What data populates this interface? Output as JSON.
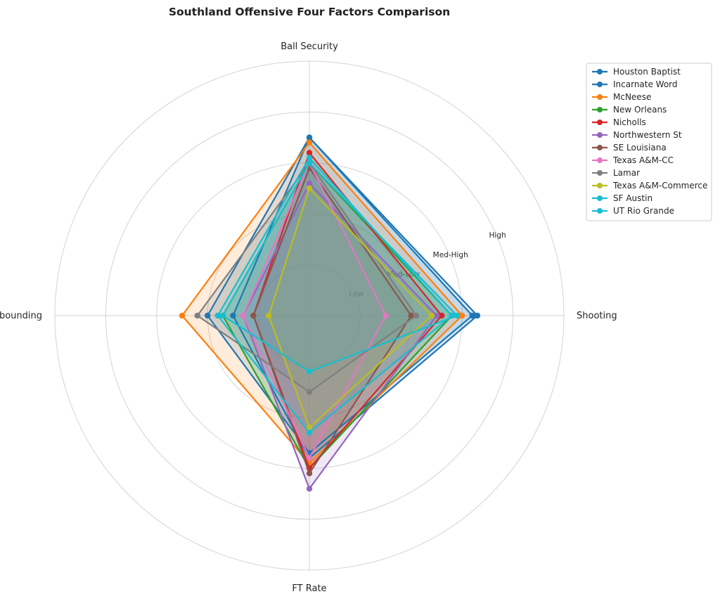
{
  "chart_data": {
    "type": "radar",
    "title": "Southland Offensive Four Factors Comparison",
    "axes": [
      "Ball Security",
      "Shooting",
      "FT Rate",
      "Off Rebounding"
    ],
    "ring_labels": [
      "Low",
      "Med-Low",
      "Med-High",
      "High"
    ],
    "rmax": 5,
    "grid": true,
    "legend_position": "upper-right",
    "series": [
      {
        "name": "Houston Baptist",
        "color": "#1f77b4",
        "values": [
          3.5,
          3.2,
          2.7,
          2.0
        ]
      },
      {
        "name": "Incarnate Word",
        "color": "#1f77b4",
        "values": [
          3.5,
          3.3,
          2.8,
          1.5
        ]
      },
      {
        "name": "McNeese",
        "color": "#ff7f0e",
        "values": [
          3.4,
          3.0,
          2.9,
          2.5
        ]
      },
      {
        "name": "New Orleans",
        "color": "#2ca02c",
        "values": [
          3.0,
          2.8,
          3.0,
          1.7
        ]
      },
      {
        "name": "Nicholls",
        "color": "#d62728",
        "values": [
          3.2,
          2.6,
          3.0,
          1.1
        ]
      },
      {
        "name": "Northwestern St",
        "color": "#9467bd",
        "values": [
          2.6,
          2.5,
          3.4,
          1.3
        ]
      },
      {
        "name": "SE Louisiana",
        "color": "#8c564b",
        "values": [
          2.9,
          2.0,
          3.1,
          1.1
        ]
      },
      {
        "name": "Texas A&M-CC",
        "color": "#e377c2",
        "values": [
          3.0,
          1.5,
          2.8,
          1.3
        ]
      },
      {
        "name": "Lamar",
        "color": "#7f7f7f",
        "values": [
          3.0,
          2.1,
          1.5,
          2.2
        ]
      },
      {
        "name": "Texas A&M-Commerce",
        "color": "#bcbd22",
        "values": [
          2.5,
          2.4,
          2.2,
          0.8
        ]
      },
      {
        "name": "SF Austin",
        "color": "#17becf",
        "values": [
          3.1,
          2.8,
          2.3,
          1.8
        ]
      },
      {
        "name": "UT Rio Grande",
        "color": "#17becf",
        "values": [
          3.0,
          2.9,
          1.1,
          1.7
        ]
      }
    ]
  }
}
